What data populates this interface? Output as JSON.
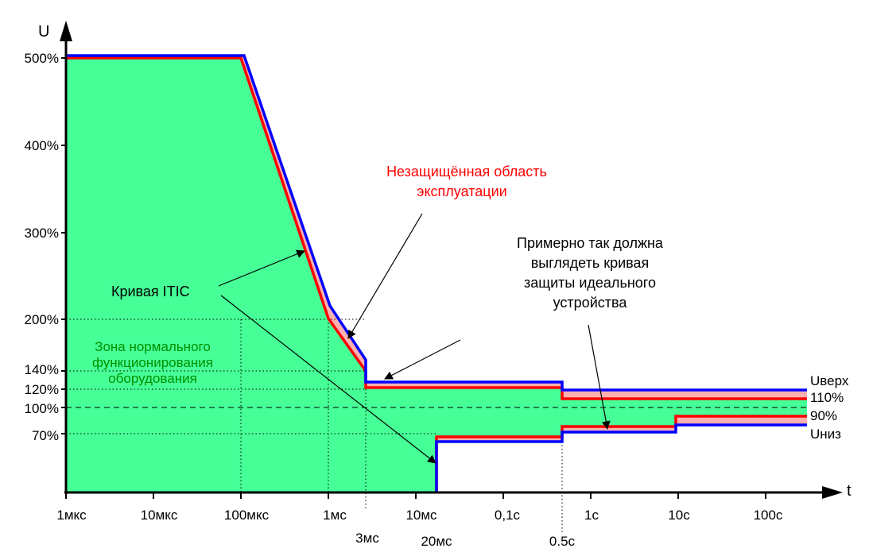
{
  "chart_data": {
    "type": "line",
    "title": "",
    "xlabel": "t",
    "ylabel": "U",
    "x_scale": "log",
    "x_ticks_bottom": [
      "1мкс",
      "10мкс",
      "100мкс",
      "1мс",
      "10мс",
      "0,1с",
      "1с",
      "10с",
      "100с"
    ],
    "x_ticks_extra": [
      "3мс",
      "20мс",
      "0.5с"
    ],
    "y_ticks": [
      "500%",
      "400%",
      "300%",
      "200%",
      "140%",
      "120%",
      "100%",
      "70%"
    ],
    "ylim_percent": [
      0,
      500
    ],
    "series": [
      {
        "key": "itic",
        "description_label": "Кривая ITIC",
        "color": "#ff0000",
        "points": [
          {
            "t": "1мкс",
            "u": 500
          },
          {
            "t": "100мкс",
            "u": 500
          },
          {
            "t": "1мс",
            "u": 200
          },
          {
            "t": "3мс",
            "u": 140
          },
          {
            "t": "3мс",
            "u": 120
          },
          {
            "t": "0.5с",
            "u": 120
          },
          {
            "t": "0.5с",
            "u": 110
          },
          {
            "t": ">100с",
            "u": 110
          }
        ],
        "lower_points": [
          {
            "t": "20мс",
            "u": 0
          },
          {
            "t": "20мс",
            "u": 70
          },
          {
            "t": "0.5с",
            "u": 70
          },
          {
            "t": "0.5с",
            "u": 80
          },
          {
            "t": "10с",
            "u": 80
          },
          {
            "t": "10с",
            "u": 90
          },
          {
            "t": ">100с",
            "u": 90
          }
        ]
      },
      {
        "key": "ideal_device",
        "description_label": "Примерно так должна выглядеть кривая защиты идеального устройства",
        "color": "#0000ff",
        "upper_label": "Uверх",
        "lower_label": "Uниз"
      }
    ],
    "reference_line": {
      "u": 100,
      "style": "dashed"
    },
    "right_labels": [
      "Uверх",
      "110%",
      "90%",
      "Uниз"
    ],
    "annotations": {
      "unprotected_line1": "Незащищённая область",
      "unprotected_line2": "эксплуатации",
      "itic": "Кривая ITIC",
      "ideal_line1": "Примерно так должна",
      "ideal_line2": "выглядеть кривая",
      "ideal_line3": "защиты идеального",
      "ideal_line4": "устройства",
      "normal_line1": "Зона нормального",
      "normal_line2": "функционирования",
      "normal_line3": "оборудования"
    },
    "colors": {
      "normal_zone": "#46ff96",
      "unprotected_zone": "#ffb0b0",
      "itic_curve": "#ff0000",
      "ideal_curve": "#0000ff",
      "annotation_red": "#ff0000",
      "annotation_green": "#009000"
    }
  }
}
